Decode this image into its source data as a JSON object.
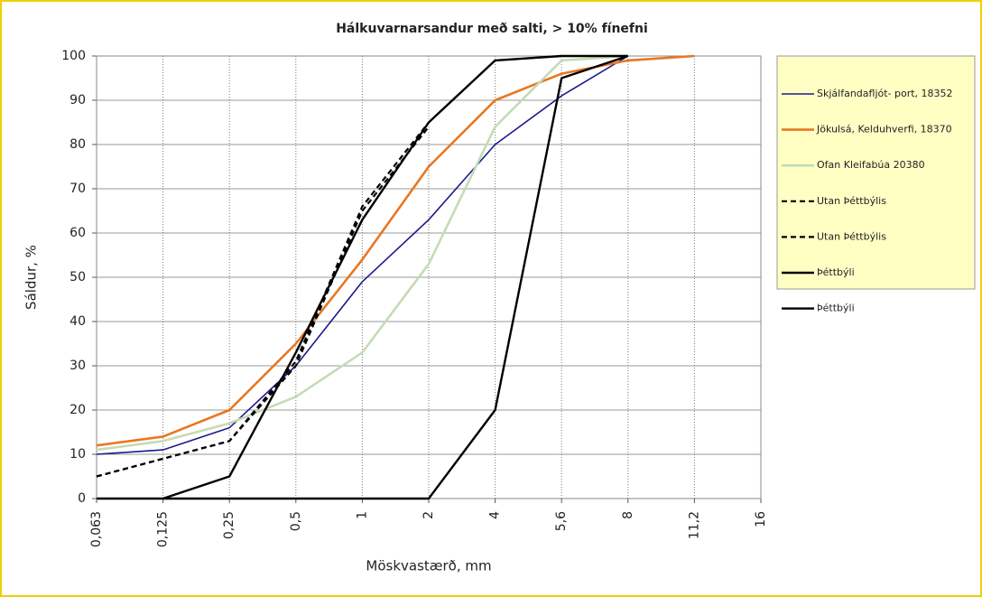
{
  "chart_data": {
    "type": "line",
    "title": "Hálkuvarnarsandur með salti, > 10% fínefni",
    "x_label": "Möskvastærð, mm",
    "y_label": "Sáldur, %",
    "categories": [
      "0,063",
      "0,125",
      "0,25",
      "0,5",
      "1",
      "2",
      "4",
      "5,6",
      "8",
      "11,2",
      "16"
    ],
    "series": [
      {
        "name": "Skjálfandafljót- port, 18352",
        "color": "#1a1a8c",
        "width": 1.6,
        "dashed": false,
        "values": [
          10,
          11,
          16,
          30,
          49,
          63,
          80,
          91,
          100,
          null,
          null
        ]
      },
      {
        "name": "Jökulsá, Kelduhverfi, 18370",
        "color": "#e87722",
        "width": 2.6,
        "dashed": false,
        "values": [
          12,
          14,
          20,
          35,
          54,
          75,
          90,
          96,
          99,
          100,
          null
        ]
      },
      {
        "name": "Ofan Kleifabúa  20380",
        "color": "#c5dbb5",
        "width": 2.6,
        "dashed": false,
        "values": [
          11,
          13,
          17,
          23,
          33,
          53,
          84,
          99,
          100,
          null,
          null
        ]
      },
      {
        "name": "Utan Þéttbýlis",
        "color": "#000000",
        "width": 2.2,
        "dashed": true,
        "values": [
          5,
          9,
          13,
          31,
          66,
          85,
          null,
          null,
          null,
          null,
          null
        ]
      },
      {
        "name": "Utan Þéttbýlis",
        "color": "#000000",
        "width": 2.2,
        "dashed": true,
        "values": [
          5,
          9,
          13,
          30,
          65,
          84,
          null,
          null,
          null,
          null,
          null
        ]
      },
      {
        "name": "Þéttbýli",
        "color": "#000000",
        "width": 2.4,
        "dashed": false,
        "values": [
          null,
          0,
          5,
          33,
          63,
          85,
          99,
          100,
          100,
          null,
          null
        ]
      },
      {
        "name": "Þéttbýli",
        "color": "#000000",
        "width": 2.4,
        "dashed": false,
        "values": [
          0,
          0,
          0,
          0,
          0,
          0,
          20,
          95,
          100,
          null,
          null
        ]
      }
    ],
    "ylim": [
      0,
      100
    ],
    "yticks": [
      0,
      10,
      20,
      30,
      40,
      50,
      60,
      70,
      80,
      90,
      100
    ],
    "grid": true,
    "legend": "right"
  }
}
